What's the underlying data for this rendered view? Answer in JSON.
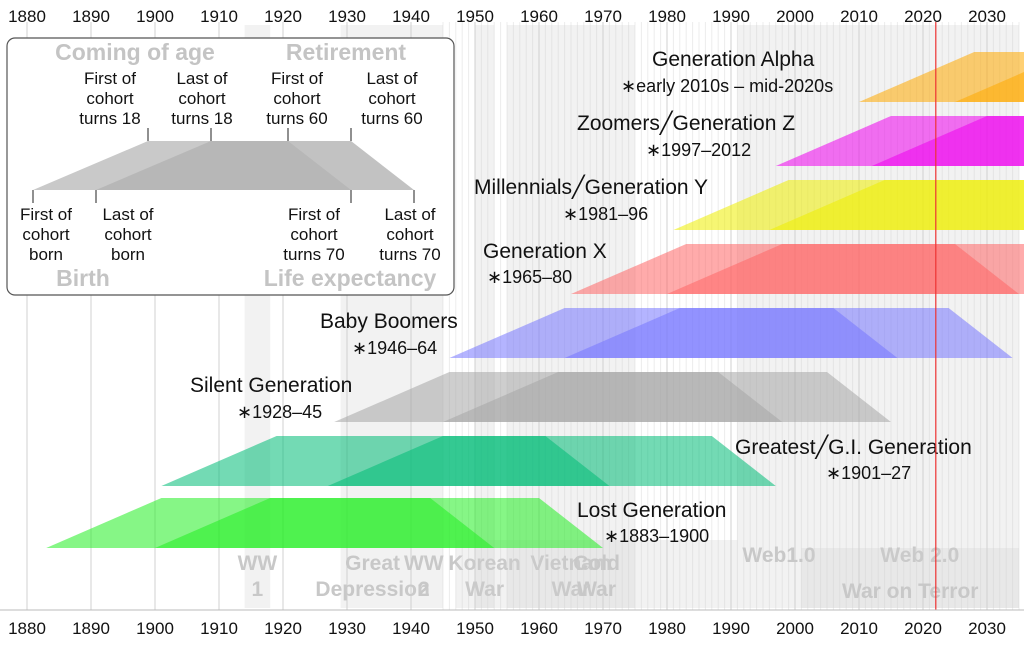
{
  "timeline": {
    "axis_years": [
      "1880",
      "1890",
      "1900",
      "1910",
      "1920",
      "1930",
      "1940",
      "1950",
      "1960",
      "1970",
      "1980",
      "1990",
      "2000",
      "2010",
      "2020",
      "2030"
    ],
    "current_year": 2022
  },
  "events": [
    {
      "id": "ww1",
      "lines": [
        "WW",
        "1"
      ],
      "start": 1914,
      "end": 1918
    },
    {
      "id": "great-depression",
      "lines": [
        "Great",
        "Depression"
      ],
      "start": 1929,
      "end": 1939
    },
    {
      "id": "ww2",
      "lines": [
        "WW",
        "2"
      ],
      "start": 1939,
      "end": 1945
    },
    {
      "id": "korean-war",
      "lines": [
        "Korean",
        "War"
      ],
      "start": 1950,
      "end": 1953
    },
    {
      "id": "vietnam-war",
      "lines": [
        "Vietnam",
        "War"
      ],
      "start": 1955,
      "end": 1975
    },
    {
      "id": "cold-war",
      "lines": [
        "Cold",
        "War"
      ],
      "start": 1947,
      "end": 1991
    },
    {
      "id": "web1",
      "lines": [
        "Web1.0"
      ],
      "start": 1991,
      "end": 2004
    },
    {
      "id": "web2",
      "lines": [
        "Web 2.0"
      ],
      "start": 2004,
      "end": 2035
    },
    {
      "id": "war-on-terror",
      "lines": [
        "War on Terror"
      ],
      "start": 2001,
      "end": 2035
    }
  ],
  "generations": [
    {
      "id": "lost",
      "name": "Lost Generation",
      "years": "∗1883–1900",
      "birth_start": 1883,
      "birth_end": 1900,
      "color": "#22ee22"
    },
    {
      "id": "greatest",
      "name": "Greatest╱G.I. Generation",
      "years": "∗1901–27",
      "birth_start": 1901,
      "birth_end": 1927,
      "color": "#00bb77"
    },
    {
      "id": "silent",
      "name": "Silent Generation",
      "years": "∗1928–45",
      "birth_start": 1928,
      "birth_end": 1945,
      "color": "#a6a6a6"
    },
    {
      "id": "boomers",
      "name": "Baby Boomers",
      "years": "∗1946–64",
      "birth_start": 1946,
      "birth_end": 1964,
      "color": "#7777ff"
    },
    {
      "id": "genx",
      "name": "Generation X",
      "years": "∗1965–80",
      "birth_start": 1965,
      "birth_end": 1980,
      "color": "#ff6666"
    },
    {
      "id": "millennials",
      "name": "Millennials╱Generation Y",
      "years": "∗1981–96",
      "birth_start": 1981,
      "birth_end": 1996,
      "color": "#eeee00"
    },
    {
      "id": "genz",
      "name": "Zoomers╱Generation Z",
      "years": "∗1997–2012",
      "birth_start": 1997,
      "birth_end": 2012,
      "color": "#ee00ee"
    },
    {
      "id": "alpha",
      "name": "Generation Alpha",
      "years": "∗early 2010s – mid-2020s",
      "birth_start": 2010,
      "birth_end": 2025,
      "color": "#ffaa00"
    }
  ],
  "legend": {
    "coming_of_age": "Coming of age",
    "retirement": "Retirement",
    "birth": "Birth",
    "life_expectancy": "Life expectancy",
    "markers_top": [
      {
        "id": "first-18",
        "lines": [
          "First of",
          "cohort",
          "turns 18"
        ]
      },
      {
        "id": "last-18",
        "lines": [
          "Last of",
          "cohort",
          "turns 18"
        ]
      },
      {
        "id": "first-60",
        "lines": [
          "First of",
          "cohort",
          "turns 60"
        ]
      },
      {
        "id": "last-60",
        "lines": [
          "Last of",
          "cohort",
          "turns 60"
        ]
      }
    ],
    "markers_bottom": [
      {
        "id": "first-born",
        "lines": [
          "First of",
          "cohort",
          "born"
        ]
      },
      {
        "id": "last-born",
        "lines": [
          "Last of",
          "cohort",
          "born"
        ]
      },
      {
        "id": "first-70",
        "lines": [
          "First of",
          "cohort",
          "turns 70"
        ]
      },
      {
        "id": "last-70",
        "lines": [
          "Last of",
          "cohort",
          "turns 70"
        ]
      }
    ]
  }
}
